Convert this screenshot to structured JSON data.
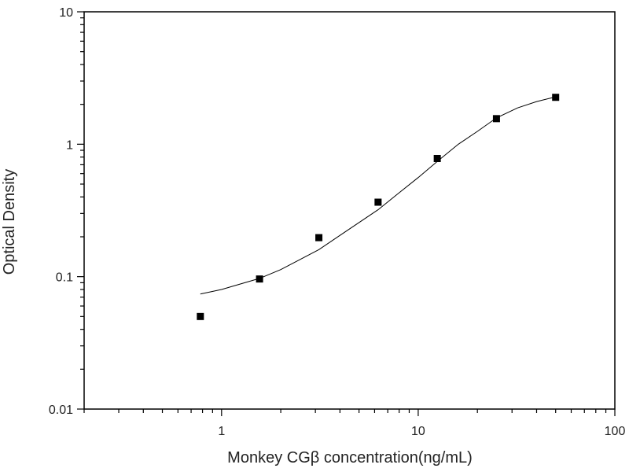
{
  "chart_data": {
    "type": "scatter",
    "title": "",
    "xlabel": "Monkey CGβ  concentration(ng/mL)",
    "ylabel": "Optical Density",
    "x_scale": "log",
    "y_scale": "log",
    "xlim": [
      0.2,
      100
    ],
    "ylim": [
      0.01,
      10
    ],
    "x_ticks": [
      {
        "value": 1,
        "label": "1"
      },
      {
        "value": 10,
        "label": "10"
      },
      {
        "value": 100,
        "label": "100"
      }
    ],
    "y_ticks": [
      {
        "value": 0.01,
        "label": "0.01"
      },
      {
        "value": 0.1,
        "label": "0.1"
      },
      {
        "value": 1,
        "label": "1"
      },
      {
        "value": 10,
        "label": "10"
      }
    ],
    "grid": false,
    "legend": "none",
    "series": [
      {
        "marker": "square",
        "color": "#000000",
        "x": [
          0.78,
          1.56,
          3.125,
          6.25,
          12.5,
          25,
          50
        ],
        "y": [
          0.05,
          0.096,
          0.197,
          0.365,
          0.78,
          1.56,
          2.26
        ]
      }
    ],
    "fit_curve": {
      "color": "#000000",
      "x": [
        0.78,
        1.0,
        1.56,
        2.0,
        3.125,
        4.0,
        6.25,
        8.0,
        10.0,
        12.5,
        16.0,
        20.0,
        25.0,
        32.0,
        40.0,
        50.0
      ],
      "y": [
        0.074,
        0.08,
        0.097,
        0.113,
        0.16,
        0.205,
        0.32,
        0.43,
        0.56,
        0.74,
        1.0,
        1.25,
        1.58,
        1.88,
        2.1,
        2.28
      ]
    }
  }
}
